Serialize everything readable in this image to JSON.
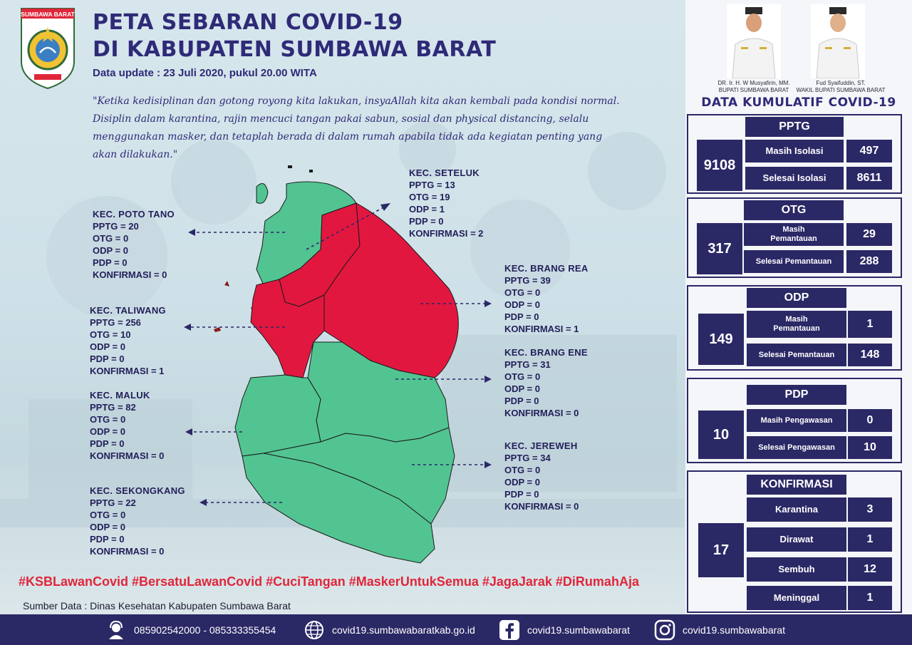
{
  "header": {
    "region_badge": "SUMBAWA BARAT",
    "title_line1": "PETA SEBARAN COVID-19",
    "title_line2": "DI KABUPATEN SUMBAWA BARAT",
    "update": "Data update : 23 Juli 2020, pukul 20.00 WITA",
    "quote": "\"Ketika kedisiplinan dan gotong royong kita lakukan, insyaAllah kita akan kembali pada kondisi normal. Disiplin dalam karantina, rajin mencuci tangan pakai sabun, sosial dan physical distancing, selalu menggunakan masker, dan tetaplah berada di dalam rumah apabila tidak ada kegiatan penting yang akan dilakukan.\""
  },
  "colors": {
    "zone_red": "#e2173f",
    "zone_green": "#52c492",
    "navy": "#2b2866",
    "hashtag_red": "#e0263a"
  },
  "kecamatan": [
    {
      "title": "KEC. POTO TANO",
      "lines": [
        "PPTG = 20",
        "OTG = 0",
        "ODP = 0",
        "PDP = 0",
        "KONFIRMASI = 0"
      ]
    },
    {
      "title": "KEC. SETELUK",
      "lines": [
        "PPTG = 13",
        "OTG = 19",
        "ODP = 1",
        "PDP = 0",
        "KONFIRMASI = 2"
      ]
    },
    {
      "title": "KEC. TALIWANG",
      "lines": [
        "PPTG = 256",
        "OTG = 10",
        "ODP = 0",
        "PDP = 0",
        "KONFIRMASI = 1"
      ]
    },
    {
      "title": "KEC. BRANG REA",
      "lines": [
        "PPTG = 39",
        "OTG = 0",
        "ODP = 0",
        "PDP = 0",
        "KONFIRMASI = 1"
      ]
    },
    {
      "title": "KEC. BRANG ENE",
      "lines": [
        "PPTG = 31",
        "OTG = 0",
        "ODP = 0",
        "PDP = 0",
        "KONFIRMASI = 0"
      ]
    },
    {
      "title": "KEC. MALUK",
      "lines": [
        "PPTG = 82",
        "OTG = 0",
        "ODP = 0",
        "PDP = 0",
        "KONFIRMASI = 0"
      ]
    },
    {
      "title": "KEC. JEREWEH",
      "lines": [
        "PPTG = 34",
        "OTG = 0",
        "ODP = 0",
        "PDP = 0",
        "KONFIRMASI = 0"
      ]
    },
    {
      "title": "KEC. SEKONGKANG",
      "lines": [
        "PPTG = 22",
        "OTG = 0",
        "ODP = 0",
        "PDP = 0",
        "KONFIRMASI = 0"
      ]
    }
  ],
  "officials": [
    {
      "name": "DR. Ir. H. W Musyafirin, MM.",
      "role": "BUPATI SUMBAWA BARAT"
    },
    {
      "name": "Fud Syaifuddin, ST.",
      "role": "WAKIL BUPATI SUMBAWA BARAT"
    }
  ],
  "kumulatif": {
    "title": "DATA KUMULATIF COVID-19",
    "pptg": {
      "head": "PPTG",
      "total": "9108",
      "rows": [
        {
          "label": "Masih Isolasi",
          "value": "497"
        },
        {
          "label": "Selesai Isolasi",
          "value": "8611"
        }
      ]
    },
    "otg": {
      "head": "OTG",
      "total": "317",
      "rows": [
        {
          "label": "Masih Pemantauan",
          "value": "29"
        },
        {
          "label": "Selesai Pemantauan",
          "value": "288"
        }
      ]
    },
    "odp": {
      "head": "ODP",
      "total": "149",
      "rows": [
        {
          "label": "Masih Pemantauan",
          "value": "1"
        },
        {
          "label": "Selesai Pemantauan",
          "value": "148"
        }
      ]
    },
    "pdp": {
      "head": "PDP",
      "total": "10",
      "rows": [
        {
          "label": "Masih Pengawasan",
          "value": "0"
        },
        {
          "label": "Selesai Pengawasan",
          "value": "10"
        }
      ]
    },
    "konfirmasi": {
      "head": "KONFIRMASI",
      "total": "17",
      "rows": [
        {
          "label": "Karantina",
          "value": "3"
        },
        {
          "label": "Dirawat",
          "value": "1"
        },
        {
          "label": "Sembuh",
          "value": "12"
        },
        {
          "label": "Meninggal",
          "value": "1"
        }
      ]
    }
  },
  "hashtags": "#KSBLawanCovid #BersatuLawanCovid #CuciTangan #MaskerUntukSemua #JagaJarak #DiRumahAja",
  "source": "Sumber Data : Dinas Kesehatan Kabupaten Sumbawa Barat",
  "footer": {
    "phone": "085902542000 - 085333355454",
    "website": "covid19.sumbawabaratkab.go.id",
    "facebook": "covid19.sumbawabarat",
    "instagram": "covid19.sumbawabarat",
    "icons": [
      "headset-icon",
      "globe-icon",
      "facebook-icon",
      "instagram-icon"
    ]
  }
}
